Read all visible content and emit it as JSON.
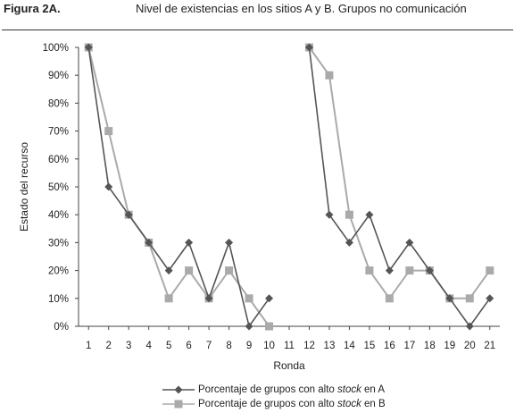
{
  "header": {
    "figure_label": "Figura 2A.",
    "title": "Nivel de existencias en los sitios A y B. Grupos no comunicación"
  },
  "chart_data": {
    "type": "line",
    "title": "Nivel de existencias en los sitios A y B. Grupos no comunicación",
    "xlabel": "Ronda",
    "ylabel": "Estado del recurso",
    "x": [
      1,
      2,
      3,
      4,
      5,
      6,
      7,
      8,
      9,
      10,
      11,
      12,
      13,
      14,
      15,
      16,
      17,
      18,
      19,
      20,
      21
    ],
    "ylim": [
      0,
      100
    ],
    "y_ticks": [
      "0%",
      "10%",
      "20%",
      "30%",
      "40%",
      "50%",
      "60%",
      "70%",
      "80%",
      "90%",
      "100%"
    ],
    "grid": false,
    "legend_position": "bottom",
    "series": [
      {
        "name_prefix": "Porcentaje de grupos con alto ",
        "name_emphasis": "stock",
        "name_suffix": " en A",
        "color": "#555555",
        "marker": "diamond",
        "values": [
          100,
          50,
          40,
          30,
          20,
          30,
          10,
          30,
          0,
          10,
          null,
          100,
          40,
          30,
          40,
          20,
          30,
          20,
          10,
          0,
          10
        ]
      },
      {
        "name_prefix": "Porcentaje de grupos con alto ",
        "name_emphasis": "stock",
        "name_suffix": " en B",
        "color": "#aaaaaa",
        "marker": "square",
        "values": [
          100,
          70,
          40,
          30,
          10,
          20,
          10,
          20,
          10,
          0,
          null,
          100,
          90,
          40,
          20,
          10,
          20,
          20,
          10,
          10,
          20
        ]
      }
    ]
  }
}
